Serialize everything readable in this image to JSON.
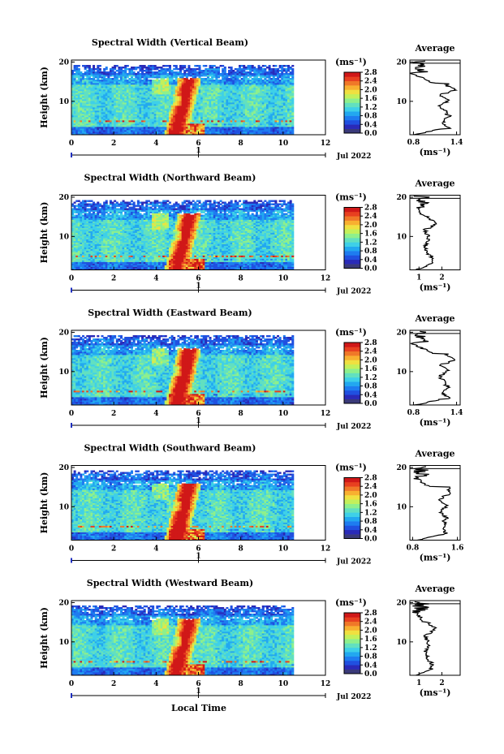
{
  "colors": {
    "scale": [
      "#3a3a7a",
      "#2a2ab8",
      "#2050e0",
      "#1e7cf0",
      "#22a8f0",
      "#3ed0e8",
      "#62e0c0",
      "#8ef08c",
      "#c4f05a",
      "#f0e040",
      "#f8b030",
      "#f07828",
      "#e84020",
      "#d01818"
    ],
    "frame": "#000000",
    "blank": "#ffffff"
  },
  "footer": {
    "xlabel": "Local Time"
  },
  "chart_data": [
    {
      "type": "heatmap",
      "title": "Spectral Width (Vertical Beam)",
      "ylabel": "Height (km)",
      "xlim": [
        0,
        12
      ],
      "ylim": [
        1.5,
        20.5
      ],
      "xticks": [
        "0",
        "2",
        "4",
        "6",
        "8",
        "10",
        "12"
      ],
      "yticks": [
        "20",
        "10"
      ],
      "data_time_range": [
        0,
        10.5
      ],
      "date_marker": "1",
      "date_label": "Jul 2022",
      "colorbar": {
        "unit": "(ms⁻¹)",
        "range": [
          0,
          2.8
        ],
        "ticks": [
          "2.8",
          "2.4",
          "2.0",
          "1.6",
          "1.2",
          "0.8",
          "0.4",
          "0.0"
        ]
      },
      "average": {
        "title": "Average",
        "xlabel": "(ms⁻¹)",
        "xlim": [
          0.75,
          1.45
        ],
        "xticks": [
          "0.8",
          "1.4"
        ],
        "yticks": [
          "20",
          "10"
        ],
        "mode": "a"
      }
    },
    {
      "type": "heatmap",
      "title": "Spectral Width (Northward Beam)",
      "ylabel": "Height (km)",
      "xlim": [
        0,
        12
      ],
      "ylim": [
        1.5,
        20.5
      ],
      "xticks": [
        "0",
        "2",
        "4",
        "6",
        "8",
        "10",
        "12"
      ],
      "yticks": [
        "20",
        "10"
      ],
      "data_time_range": [
        0,
        10.5
      ],
      "date_marker": "1",
      "date_label": "Jul 2022",
      "colorbar": {
        "unit": "(ms⁻¹)",
        "range": [
          0,
          2.8
        ],
        "ticks": [
          "2.8",
          "2.4",
          "2.0",
          "1.6",
          "1.2",
          "0.8",
          "0.4",
          "0.0"
        ]
      },
      "average": {
        "title": "Average",
        "xlabel": "(ms⁻¹)",
        "xlim": [
          0.6,
          2.8
        ],
        "xticks": [
          "1",
          "2"
        ],
        "yticks": [
          "20",
          "10"
        ],
        "mode": "b"
      }
    },
    {
      "type": "heatmap",
      "title": "Spectral Width (Eastward Beam)",
      "ylabel": "Height (km)",
      "xlim": [
        0,
        12
      ],
      "ylim": [
        1.5,
        20.5
      ],
      "xticks": [
        "0",
        "2",
        "4",
        "6",
        "8",
        "10",
        "12"
      ],
      "yticks": [
        "20",
        "10"
      ],
      "data_time_range": [
        0,
        10.5
      ],
      "date_marker": "1",
      "date_label": "Jul 2022",
      "colorbar": {
        "unit": "(ms⁻¹)",
        "range": [
          0,
          2.8
        ],
        "ticks": [
          "2.8",
          "2.4",
          "2.0",
          "1.6",
          "1.2",
          "0.8",
          "0.4",
          "0.0"
        ]
      },
      "average": {
        "title": "Average",
        "xlabel": "(ms⁻¹)",
        "xlim": [
          0.75,
          1.45
        ],
        "xticks": [
          "0.8",
          "1.4"
        ],
        "yticks": [
          "20",
          "10"
        ],
        "mode": "a"
      }
    },
    {
      "type": "heatmap",
      "title": "Spectral Width (Southward Beam)",
      "ylabel": "Height (km)",
      "xlim": [
        0,
        12
      ],
      "ylim": [
        1.5,
        20.5
      ],
      "xticks": [
        "0",
        "2",
        "4",
        "6",
        "8",
        "10",
        "12"
      ],
      "yticks": [
        "20",
        "10"
      ],
      "data_time_range": [
        0,
        10.5
      ],
      "date_marker": "1",
      "date_label": "Jul 2022",
      "colorbar": {
        "unit": "(ms⁻¹)",
        "range": [
          0,
          2.8
        ],
        "ticks": [
          "2.8",
          "2.4",
          "2.0",
          "1.6",
          "1.2",
          "0.8",
          "0.4",
          "0.0"
        ]
      },
      "average": {
        "title": "Average",
        "xlabel": "(ms⁻¹)",
        "xlim": [
          0.75,
          1.65
        ],
        "xticks": [
          "0.8",
          "1.6"
        ],
        "yticks": [
          "20",
          "10"
        ],
        "mode": "c"
      }
    },
    {
      "type": "heatmap",
      "title": "Spectral Width (Westward Beam)",
      "ylabel": "Height (km)",
      "xlim": [
        0,
        12
      ],
      "ylim": [
        1.5,
        20.5
      ],
      "xticks": [
        "0",
        "2",
        "4",
        "6",
        "8",
        "10",
        "12"
      ],
      "yticks": [
        "20",
        "10"
      ],
      "data_time_range": [
        0,
        10.5
      ],
      "date_marker": "1",
      "date_label": "Jul 2022",
      "colorbar": {
        "unit": "(ms⁻¹)",
        "range": [
          0,
          2.8
        ],
        "ticks": [
          "2.8",
          "2.4",
          "2.0",
          "1.6",
          "1.2",
          "0.8",
          "0.4",
          "0.0"
        ]
      },
      "average": {
        "title": "Average",
        "xlabel": "(ms⁻¹)",
        "xlim": [
          0.6,
          2.8
        ],
        "xticks": [
          "1",
          "2"
        ],
        "yticks": [
          "20",
          "10"
        ],
        "mode": "b"
      }
    }
  ]
}
